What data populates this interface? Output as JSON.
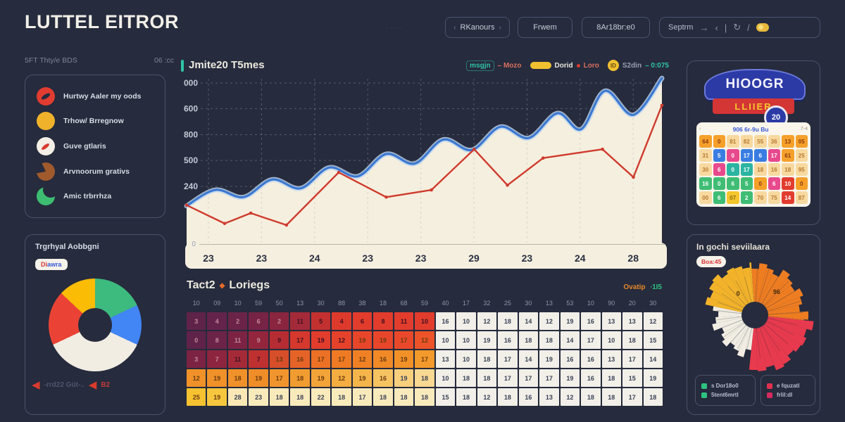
{
  "colors": {
    "bg": "#262b3d",
    "card_border": "#4b5269",
    "accent_teal": "#2ec4a5",
    "cream": "#f5efdf",
    "blue_line": "#3a77d2",
    "red_line": "#cf3b2d"
  },
  "header": {
    "title": "LUTTEL EITROR",
    "scribble": "·····",
    "buttons": [
      {
        "pre": "‹",
        "label": "RKanours",
        "post": "›"
      },
      {
        "label": "Frwem"
      },
      {
        "label": "8Ar18br:e0"
      }
    ],
    "toolbar": {
      "label": "Septrm",
      "arrow": "→",
      "chevron": "‹",
      "divider": "|",
      "refresh": "↻",
      "slash": "/"
    }
  },
  "sidebar": {
    "meta_left": "5FT Thty/e BDS",
    "meta_right": "06 :cc",
    "legend_items": [
      {
        "icon": "red-berry",
        "label": "Hurtwy Aaler my oods"
      },
      {
        "icon": "yellow-sun",
        "label": "Trhow/ Brregnow"
      },
      {
        "icon": "white-brush",
        "label": "Guve gtlaris"
      },
      {
        "icon": "brown-pacman",
        "label": "Arvnoorum grativs"
      },
      {
        "icon": "green-crescent",
        "label": "Amic trbrrhza"
      }
    ],
    "pie_card": {
      "title": "Trgrhyal Aobbgni",
      "badge_red": "Di",
      "badge_blue": "awra",
      "footer": {
        "arrow": "◀",
        "text": "-rrd22 Güt-..",
        "arrow2": "◀",
        "text2": "B2"
      }
    }
  },
  "right": {
    "logo": {
      "banner": "HIOOGR",
      "strip": "LLIIER",
      "badge": "20"
    },
    "calendar": {
      "header": {
        "left": "›",
        "title": "906 6r-9u Bu",
        "right": "7-4"
      },
      "palette": {
        "org": "#f5a02a",
        "tan": "#f7d9a0",
        "blu": "#3a7de2",
        "pnk": "#e8498d",
        "tea": "#2ab5a2",
        "grn": "#3fbd74",
        "red": "#e23c2f",
        "yel": "#f5c62c"
      },
      "text_palette": {
        "org": "#8a3a10",
        "tan": "#b87a2e",
        "blu": "#ffffff",
        "pnk": "#ffffff",
        "tea": "#ffffff",
        "grn": "#ffffff",
        "red": "#ffffff",
        "yel": "#8a6a10"
      },
      "rows": [
        [
          {
            "v": "64",
            "c": "org"
          },
          {
            "v": "0",
            "c": "org"
          },
          {
            "v": "81",
            "c": "tan"
          },
          {
            "v": "82",
            "c": "tan"
          },
          {
            "v": "55",
            "c": "tan"
          },
          {
            "v": "36",
            "c": "tan"
          },
          {
            "v": "13",
            "c": "org"
          },
          {
            "v": "05",
            "c": "org"
          }
        ],
        [
          {
            "v": "31",
            "c": "tan"
          },
          {
            "v": "5",
            "c": "blu"
          },
          {
            "v": "0",
            "c": "pnk"
          },
          {
            "v": "17",
            "c": "blu"
          },
          {
            "v": "6",
            "c": "blu"
          },
          {
            "v": "17",
            "c": "pnk"
          },
          {
            "v": "61",
            "c": "org"
          },
          {
            "v": "25",
            "c": "tan"
          }
        ],
        [
          {
            "v": "30",
            "c": "tan"
          },
          {
            "v": "6",
            "c": "pnk"
          },
          {
            "v": "0",
            "c": "tea"
          },
          {
            "v": "17",
            "c": "tea"
          },
          {
            "v": "18",
            "c": "tan"
          },
          {
            "v": "16",
            "c": "tan"
          },
          {
            "v": "18",
            "c": "tan"
          },
          {
            "v": "95",
            "c": "tan"
          }
        ],
        [
          {
            "v": "16",
            "c": "grn"
          },
          {
            "v": "0",
            "c": "grn"
          },
          {
            "v": "6",
            "c": "grn"
          },
          {
            "v": "5",
            "c": "grn"
          },
          {
            "v": "0",
            "c": "org"
          },
          {
            "v": "6",
            "c": "pnk"
          },
          {
            "v": "10",
            "c": "red"
          },
          {
            "v": "0",
            "c": "org"
          }
        ],
        [
          {
            "v": "00",
            "c": "tan"
          },
          {
            "v": "6",
            "c": "grn"
          },
          {
            "v": "07",
            "c": "yel"
          },
          {
            "v": "2",
            "c": "grn"
          },
          {
            "v": "70",
            "c": "tan"
          },
          {
            "v": "75",
            "c": "tan"
          },
          {
            "v": "14",
            "c": "red"
          },
          {
            "v": "87",
            "c": "tan"
          }
        ]
      ]
    }
  },
  "chart_data": [
    {
      "type": "area-line",
      "title": "Jmite20 T5mes",
      "x_labels": [
        "23",
        "23",
        "24",
        "23",
        "23",
        "29",
        "23",
        "24",
        "28"
      ],
      "y_ticks": [
        {
          "label": "000",
          "value": 1000
        },
        {
          "label": "600",
          "value": 840
        },
        {
          "label": "800",
          "value": 676
        },
        {
          "label": "500",
          "value": 515
        },
        {
          "label": "240",
          "value": 352
        }
      ],
      "zero_label": "0",
      "ylim": [
        0,
        1030
      ],
      "grid": "dashed",
      "legend": [
        {
          "badge": "msgjn",
          "suffix": "– Mozo"
        },
        {
          "swatch": "yellow-pill",
          "label": "Dorid",
          "dot": "red",
          "suffix": "Loro"
        },
        {
          "badge": "ID",
          "label": "S2din",
          "suffix": "– 0:075"
        }
      ],
      "series": [
        {
          "name": "blue-area",
          "color": "#3a77d2",
          "halo": "#bcd4ee",
          "fill": "#f5efdf",
          "points": [
            [
              0,
              230
            ],
            [
              0.06,
              330
            ],
            [
              0.12,
              285
            ],
            [
              0.18,
              395
            ],
            [
              0.24,
              340
            ],
            [
              0.3,
              470
            ],
            [
              0.36,
              415
            ],
            [
              0.42,
              555
            ],
            [
              0.48,
              495
            ],
            [
              0.54,
              645
            ],
            [
              0.6,
              580
            ],
            [
              0.66,
              725
            ],
            [
              0.72,
              655
            ],
            [
              0.78,
              810
            ],
            [
              0.83,
              710
            ],
            [
              0.88,
              950
            ],
            [
              0.94,
              800
            ],
            [
              1,
              1030
            ]
          ]
        },
        {
          "name": "red-line",
          "color": "#cf3b2d",
          "points": [
            [
              0,
              235
            ],
            [
              0.08,
              120
            ],
            [
              0.135,
              185
            ],
            [
              0.21,
              110
            ],
            [
              0.32,
              440
            ],
            [
              0.42,
              285
            ],
            [
              0.515,
              330
            ],
            [
              0.605,
              585
            ],
            [
              0.675,
              360
            ],
            [
              0.75,
              530
            ],
            [
              0.875,
              585
            ],
            [
              0.94,
              410
            ],
            [
              1,
              860
            ]
          ]
        }
      ]
    },
    {
      "type": "pie",
      "title": "Trgrhyal Aobbgni",
      "hole_color": "#262b3d",
      "slices": [
        {
          "label": "green",
          "value": 18,
          "color": "#3dba7e"
        },
        {
          "label": "blue",
          "value": 14,
          "color": "#4285f4"
        },
        {
          "label": "cream",
          "value": 36,
          "color": "#f1ede3"
        },
        {
          "label": "red",
          "value": 19,
          "color": "#ea4335"
        },
        {
          "label": "yellow",
          "value": 13,
          "color": "#fbbc05"
        }
      ]
    },
    {
      "type": "heatmap",
      "title_pre": "Tact2",
      "title_icon": "◆",
      "title_post": "Loriegs",
      "aside": {
        "label": "Ovatip",
        "value": "∙1I5"
      },
      "white_color": "#f1efe8",
      "columns": [
        "10",
        "09",
        "10",
        "59",
        "50",
        "13",
        "30",
        "88",
        "38",
        "18",
        "68",
        "59",
        "40",
        "17",
        "32",
        "25",
        "30",
        "13",
        "53",
        "10",
        "90",
        "20",
        "30"
      ],
      "rows": [
        {
          "values": [
            "3",
            "4",
            "2",
            "6",
            "2",
            "11",
            "5",
            "4",
            "6",
            "8",
            "11",
            "10",
            "16",
            "10",
            "12",
            "18",
            "14",
            "12",
            "19",
            "16",
            "13",
            "13",
            "12"
          ],
          "cell_colors": [
            "#5f2349",
            "#64234a",
            "#6b2348",
            "#762345",
            "#8a253f",
            "#a32a39",
            "#c23130",
            "#de3a2c",
            "#e23c2d",
            "#e23c2d",
            "#e23c2d",
            "#e23c2d"
          ]
        },
        {
          "values": [
            "0",
            "8",
            "11",
            "9",
            "9",
            "17",
            "19",
            "12",
            "19",
            "19",
            "17",
            "12",
            "10",
            "10",
            "19",
            "16",
            "18",
            "18",
            "14",
            "17",
            "10",
            "18",
            "15"
          ],
          "cell_colors": [
            "#5f2349",
            "#6b2348",
            "#7c2343",
            "#93263c",
            "#b52d33",
            "#d5382c",
            "#e23c2d",
            "#e6422b",
            "#e8462a",
            "#e8462a",
            "#e9492a",
            "#ec5328"
          ]
        },
        {
          "values": [
            "3",
            "7",
            "11",
            "7",
            "13",
            "16",
            "17",
            "17",
            "12",
            "16",
            "19",
            "17",
            "13",
            "10",
            "18",
            "17",
            "14",
            "19",
            "16",
            "16",
            "13",
            "17",
            "14"
          ],
          "cell_colors": [
            "#7c2343",
            "#8d253e",
            "#a52a38",
            "#bf3031",
            "#d74e2a",
            "#e66328",
            "#ec7124",
            "#ee7a23",
            "#ef8124",
            "#f08926",
            "#f19128",
            "#f29a2b"
          ]
        },
        {
          "values": [
            "12",
            "19",
            "18",
            "19",
            "17",
            "18",
            "19",
            "12",
            "19",
            "16",
            "19",
            "18",
            "10",
            "18",
            "18",
            "17",
            "17",
            "17",
            "19",
            "16",
            "18",
            "15",
            "19"
          ],
          "cell_colors": [
            "#f09129",
            "#f09129",
            "#f09129",
            "#ef8e28",
            "#f0952d",
            "#f19c31",
            "#f2a438",
            "#f3ad40",
            "#f4b54a",
            "#f6c362",
            "#f8cf7d",
            "#f9d892"
          ]
        },
        {
          "values": [
            "25",
            "19",
            "28",
            "23",
            "18",
            "18",
            "22",
            "18",
            "17",
            "18",
            "18",
            "18",
            "15",
            "18",
            "12",
            "18",
            "16",
            "13",
            "12",
            "18",
            "18",
            "17",
            "18"
          ],
          "cell_colors": [
            "#f6c231",
            "#f6c73e",
            "#f9e7b5",
            "#f9eabc",
            "#f9eabc",
            "#f9eabc",
            "#f9eabc",
            "#f9eabc",
            "#f9eabc",
            "#f9eabc",
            "#f9eabc",
            "#f9eabc"
          ]
        }
      ]
    },
    {
      "type": "rose",
      "title": "In gochi seviilaara",
      "badge": "Boa:45",
      "inner_radius": 19,
      "segments": [
        {
          "label": "0",
          "color": "#f2b32b",
          "start": -78,
          "end": -4,
          "radius": 66
        },
        {
          "label": "96",
          "color": "#ee7d22",
          "start": -4,
          "end": 96,
          "radius": 78
        },
        {
          "label": "",
          "color": "#e83a4e",
          "start": 96,
          "end": 186,
          "radius": 72
        },
        {
          "label": "",
          "color": "#f1ede2",
          "start": 186,
          "end": 282,
          "radius": 64
        }
      ],
      "legend": [
        {
          "color": "#2ec47f",
          "label": "s Dor18o0"
        },
        {
          "color": "#2ec47f",
          "label": "5tent6mrtl"
        },
        {
          "color": "#e0314f",
          "label": "e fquzatl"
        },
        {
          "color": "#d42a5e",
          "label": "frlil:dl"
        }
      ]
    }
  ]
}
